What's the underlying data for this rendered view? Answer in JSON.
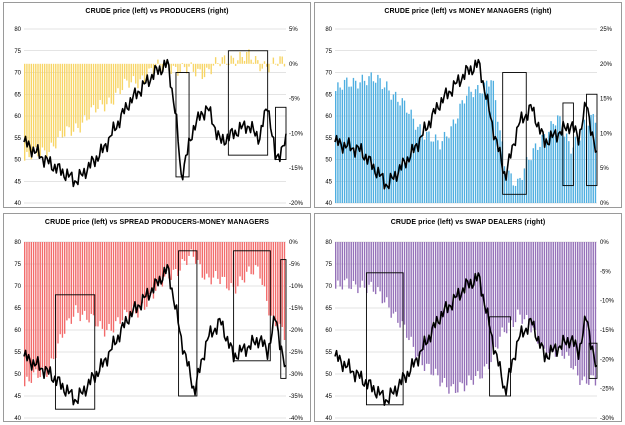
{
  "chart_data": [
    {
      "type": "bar+line",
      "title": "CRUDE price (left) vs PRODUCERS (right)",
      "bar_color": "#f7d566",
      "line_color": "#000000",
      "left_axis": {
        "ticks": [
          "80",
          "75",
          "70",
          "65",
          "60",
          "55",
          "50",
          "45",
          "40"
        ],
        "range": [
          40,
          80
        ]
      },
      "right_axis": {
        "ticks": [
          "5%",
          "0%",
          "-5%",
          "-10%",
          "-15%",
          "-20%"
        ],
        "range": [
          -20,
          5
        ]
      },
      "bars": {
        "x": [
          0,
          0.1,
          0.2,
          0.3,
          0.4,
          0.5,
          0.55,
          0.6,
          0.7,
          0.8,
          0.85,
          0.9,
          0.95,
          1.0
        ],
        "y": [
          -14,
          -12,
          -9,
          -6,
          -3,
          -1,
          0,
          -1,
          -1,
          1,
          1,
          0,
          0,
          0
        ]
      },
      "line": {
        "x": [
          0,
          0.1,
          0.2,
          0.3,
          0.4,
          0.5,
          0.55,
          0.58,
          0.6,
          0.65,
          0.7,
          0.75,
          0.8,
          0.85,
          0.9,
          0.93,
          0.96,
          1.0
        ],
        "y": [
          54,
          49,
          45,
          52,
          63,
          70,
          72,
          60,
          46,
          58,
          62,
          54,
          56,
          58,
          55,
          63,
          50,
          54
        ]
      },
      "highlights": [
        {
          "x": [
            0.58,
            0.63
          ],
          "y": [
            46,
            70
          ]
        },
        {
          "x": [
            0.78,
            0.93
          ],
          "y": [
            51,
            75
          ]
        },
        {
          "x": [
            0.96,
            1.0
          ],
          "y": [
            50,
            62
          ]
        }
      ]
    },
    {
      "type": "bar+line",
      "title": "CRUDE price (left) vs MONEY MANAGERS (right)",
      "bar_color": "#4eaee0",
      "line_color": "#000000",
      "left_axis": {
        "ticks": [
          "80",
          "75",
          "70",
          "65",
          "60",
          "55",
          "50",
          "45",
          "40"
        ],
        "range": [
          40,
          80
        ]
      },
      "right_axis": {
        "ticks": [
          "25%",
          "20%",
          "15%",
          "10%",
          "5%",
          "0%"
        ],
        "range": [
          0,
          25
        ]
      },
      "bars": {
        "x": [
          0,
          0.1,
          0.2,
          0.3,
          0.4,
          0.5,
          0.6,
          0.65,
          0.7,
          0.8,
          0.85,
          0.9,
          0.95,
          1.0
        ],
        "y": [
          16,
          18,
          17,
          12,
          8,
          15,
          18,
          5,
          3,
          10,
          12,
          8,
          11,
          12
        ]
      },
      "line": {
        "x": [
          0,
          0.1,
          0.2,
          0.3,
          0.4,
          0.5,
          0.55,
          0.6,
          0.65,
          0.7,
          0.75,
          0.8,
          0.85,
          0.9,
          0.93,
          0.96,
          1.0
        ],
        "y": [
          54,
          52,
          44,
          52,
          63,
          70,
          72,
          58,
          46,
          58,
          62,
          54,
          56,
          58,
          55,
          63,
          50
        ]
      },
      "highlights": [
        {
          "x": [
            0.64,
            0.73
          ],
          "y": [
            42,
            70
          ]
        },
        {
          "x": [
            0.87,
            0.91
          ],
          "y": [
            44,
            63
          ]
        },
        {
          "x": [
            0.96,
            1.0
          ],
          "y": [
            44,
            65
          ]
        }
      ]
    },
    {
      "type": "bar+line",
      "title": "CRUDE price (left) vs SPREAD PRODUCERS-MONEY MANAGERS",
      "bar_color": "#f26b6b",
      "line_color": "#000000",
      "left_axis": {
        "ticks": [
          "80",
          "75",
          "70",
          "65",
          "60",
          "55",
          "50",
          "45",
          "40"
        ],
        "range": [
          40,
          80
        ]
      },
      "right_axis": {
        "ticks": [
          "0%",
          "-5%",
          "-10%",
          "-15%",
          "-20%",
          "-25%",
          "-30%",
          "-35%",
          "-40%"
        ],
        "range": [
          -40,
          0
        ]
      },
      "bars": {
        "x": [
          0,
          0.1,
          0.2,
          0.3,
          0.4,
          0.5,
          0.55,
          0.6,
          0.65,
          0.7,
          0.8,
          0.9,
          0.95,
          1.0
        ],
        "y": [
          -33,
          -28,
          -15,
          -20,
          -17,
          -12,
          -7,
          -6,
          -3,
          -8,
          -10,
          -6,
          -18,
          -22
        ]
      },
      "line": {
        "x": [
          0,
          0.1,
          0.2,
          0.3,
          0.4,
          0.5,
          0.55,
          0.6,
          0.65,
          0.7,
          0.75,
          0.8,
          0.85,
          0.9,
          0.93,
          0.96,
          1.0
        ],
        "y": [
          54,
          50,
          44,
          52,
          63,
          70,
          74,
          58,
          46,
          58,
          62,
          54,
          56,
          58,
          55,
          63,
          50
        ]
      },
      "highlights": [
        {
          "x": [
            0.12,
            0.27
          ],
          "y": [
            42,
            68
          ]
        },
        {
          "x": [
            0.59,
            0.66
          ],
          "y": [
            45,
            78
          ]
        },
        {
          "x": [
            0.8,
            0.94
          ],
          "y": [
            53,
            78
          ]
        },
        {
          "x": [
            0.98,
            1.0
          ],
          "y": [
            49,
            76
          ]
        }
      ]
    },
    {
      "type": "bar+line",
      "title": "CRUDE price (left) vs SWAP DEALERS (right)",
      "bar_color": "#9470b8",
      "line_color": "#000000",
      "left_axis": {
        "ticks": [
          "80",
          "75",
          "70",
          "65",
          "60",
          "55",
          "50",
          "45",
          "40"
        ],
        "range": [
          40,
          80
        ]
      },
      "right_axis": {
        "ticks": [
          "0%",
          "-5%",
          "-10%",
          "-15%",
          "-20%",
          "-25%",
          "-30%"
        ],
        "range": [
          -30,
          0
        ]
      },
      "bars": {
        "x": [
          0,
          0.1,
          0.2,
          0.3,
          0.4,
          0.5,
          0.6,
          0.65,
          0.7,
          0.8,
          0.9,
          0.95,
          1.0
        ],
        "y": [
          -8,
          -7,
          -10,
          -18,
          -24,
          -25,
          -20,
          -15,
          -12,
          -18,
          -20,
          -24,
          -24
        ]
      },
      "line": {
        "x": [
          0,
          0.1,
          0.2,
          0.3,
          0.4,
          0.5,
          0.55,
          0.6,
          0.65,
          0.7,
          0.75,
          0.8,
          0.85,
          0.9,
          0.93,
          0.96,
          1.0
        ],
        "y": [
          54,
          49,
          44,
          52,
          63,
          70,
          72,
          58,
          46,
          58,
          62,
          54,
          56,
          58,
          55,
          63,
          50
        ]
      },
      "highlights": [
        {
          "x": [
            0.12,
            0.26
          ],
          "y": [
            43,
            73
          ]
        },
        {
          "x": [
            0.59,
            0.67
          ],
          "y": [
            45,
            63
          ]
        },
        {
          "x": [
            0.97,
            1.0
          ],
          "y": [
            49,
            57
          ]
        }
      ]
    }
  ]
}
